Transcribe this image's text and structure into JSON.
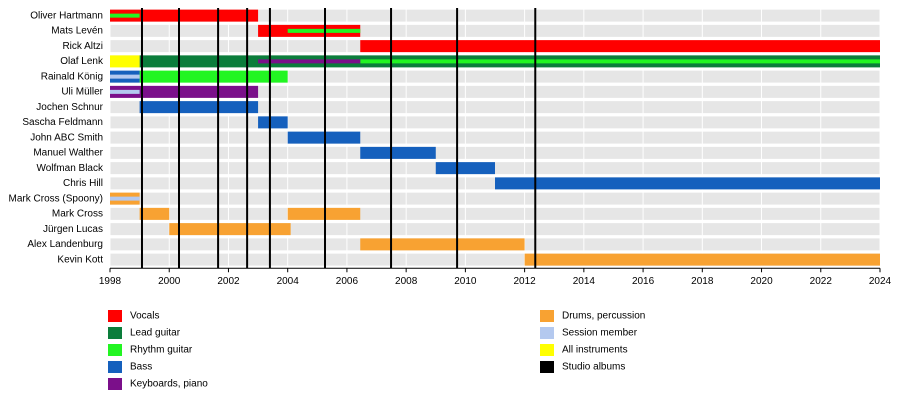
{
  "chart_data": {
    "type": "timeline",
    "categories": [
      "Oliver Hartmann",
      "Mats Levén",
      "Rick Altzi",
      "Olaf Lenk",
      "Rainald König",
      "Uli Müller",
      "Jochen Schnur",
      "Sascha Feldmann",
      "John ABC Smith",
      "Manuel Walther",
      "Wolfman Black",
      "Chris Hill",
      "Mark Cross (Spoony)",
      "Mark Cross",
      "Jürgen Lucas",
      "Alex Landenburg",
      "Kevin Kott"
    ],
    "xlim": [
      1998,
      2024
    ],
    "xticks": [
      1998,
      2000,
      2002,
      2004,
      2006,
      2008,
      2010,
      2012,
      2014,
      2016,
      2018,
      2020,
      2022,
      2024
    ],
    "series": [
      {
        "name": "Vocals",
        "color": "#ff0000",
        "values": [
          [
            [
              1998,
              2003
            ]
          ],
          [
            [
              2003,
              2006.45
            ]
          ],
          [
            [
              2006.45,
              2024
            ]
          ],
          null,
          null,
          null,
          null,
          null,
          null,
          null,
          null,
          null,
          null,
          null,
          null,
          null,
          null
        ]
      },
      {
        "name": "Lead guitar",
        "color": "#0b7d3b",
        "values": [
          null,
          null,
          null,
          [
            [
              1999,
              2024
            ]
          ],
          null,
          null,
          null,
          null,
          null,
          null,
          null,
          null,
          null,
          null,
          null,
          null,
          null
        ]
      },
      {
        "name": "Rhythm guitar",
        "color": "#22f522",
        "values": [
          [
            [
              1998,
              1999
            ]
          ],
          [
            [
              2004,
              2006.45
            ]
          ],
          null,
          [
            [
              2006.45,
              2024
            ]
          ],
          [
            [
              1999,
              2004
            ]
          ],
          null,
          null,
          null,
          null,
          null,
          null,
          null,
          null,
          null,
          null,
          null,
          null
        ]
      },
      {
        "name": "Bass",
        "color": "#1560bd",
        "values": [
          null,
          null,
          null,
          null,
          [
            [
              1998,
              1999
            ]
          ],
          null,
          [
            [
              1999,
              2003
            ]
          ],
          [
            [
              2003,
              2004
            ]
          ],
          [
            [
              2004,
              2006.45
            ]
          ],
          [
            [
              2006.45,
              2009
            ]
          ],
          [
            [
              2009,
              2011
            ]
          ],
          [
            [
              2011,
              2024
            ]
          ],
          null,
          null,
          null,
          null,
          null
        ]
      },
      {
        "name": "Keyboards, piano",
        "color": "#7b0f8a",
        "values": [
          null,
          null,
          null,
          [
            [
              2003,
              2006.45
            ]
          ],
          null,
          [
            [
              1998,
              2003
            ]
          ],
          null,
          null,
          null,
          null,
          null,
          null,
          null,
          null,
          null,
          null,
          null
        ]
      },
      {
        "name": "Drums, percussion",
        "color": "#f8a232",
        "values": [
          null,
          null,
          null,
          null,
          null,
          null,
          null,
          null,
          null,
          null,
          null,
          null,
          [
            [
              1998,
              1999
            ]
          ],
          [
            [
              1999,
              2000
            ],
            [
              2004,
              2006.45
            ]
          ],
          [
            [
              2000,
              2004.1
            ]
          ],
          [
            [
              2006.45,
              2012
            ]
          ],
          [
            [
              2012,
              2024
            ]
          ]
        ]
      },
      {
        "name": "Session member",
        "color": "#b4c9ef",
        "values": [
          null,
          null,
          null,
          null,
          [
            [
              1998,
              1999
            ]
          ],
          [
            [
              1998,
              1999
            ]
          ],
          null,
          null,
          null,
          null,
          null,
          null,
          [
            [
              1998,
              1999
            ]
          ],
          null,
          null,
          null,
          null
        ]
      },
      {
        "name": "All instruments",
        "color": "#ffff00",
        "values": [
          null,
          null,
          null,
          [
            [
              1998,
              1999
            ]
          ],
          null,
          null,
          null,
          null,
          null,
          null,
          null,
          null,
          null,
          null,
          null,
          null,
          null
        ]
      }
    ],
    "albums": {
      "name": "Studio albums",
      "color": "#000000",
      "values": [
        1999.08,
        2000.33,
        2001.65,
        2002.63,
        2003.4,
        2005.26,
        2007.49,
        2009.72,
        2012.36
      ]
    }
  }
}
